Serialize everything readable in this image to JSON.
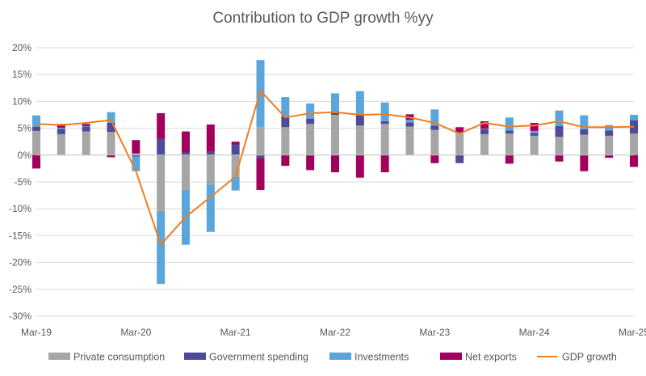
{
  "chart_data": {
    "type": "bar",
    "title": "Contribution to GDP growth %yy",
    "xlabel": "",
    "ylabel": "",
    "ylim": [
      -30,
      20
    ],
    "yticks": [
      -30,
      -25,
      -20,
      -15,
      -10,
      -5,
      0,
      5,
      10,
      15,
      20
    ],
    "ytick_labels": [
      "-30%",
      "-25%",
      "-20%",
      "-15%",
      "-10%",
      "-5%",
      "0%",
      "5%",
      "10%",
      "15%",
      "20%"
    ],
    "x_tick_labels": [
      "Mar-19",
      "Mar-20",
      "Mar-21",
      "Mar-22",
      "Mar-23",
      "Mar-24",
      "Mar-25"
    ],
    "x_tick_positions": [
      0,
      4,
      8,
      12,
      16,
      20,
      24
    ],
    "categories": [
      "Mar-19",
      "Jun-19",
      "Sep-19",
      "Dec-19",
      "Mar-20",
      "Jun-20",
      "Sep-20",
      "Dec-20",
      "Mar-21",
      "Jun-21",
      "Sep-21",
      "Dec-21",
      "Mar-22",
      "Jun-22",
      "Sep-22",
      "Dec-22",
      "Mar-23",
      "Jun-23",
      "Sep-23",
      "Dec-23",
      "Mar-24",
      "Jun-24",
      "Sep-24",
      "Dec-24",
      "Mar-25"
    ],
    "grid": true,
    "legend_position": "bottom",
    "stacked": true,
    "series": [
      {
        "name": "Private consumption",
        "type": "bar",
        "color": "#a6a6a6",
        "values": [
          4.5,
          3.9,
          4.4,
          4.3,
          0.3,
          -10.5,
          -6.5,
          -5.5,
          -4.0,
          5.2,
          5.2,
          5.8,
          7.5,
          5.5,
          5.8,
          5.3,
          4.7,
          4.0,
          3.9,
          4.0,
          3.6,
          3.4,
          3.8,
          3.6,
          4.0
        ]
      },
      {
        "name": "Government spending",
        "type": "bar",
        "color": "#4e4c9a",
        "values": [
          0.8,
          1.0,
          0.9,
          1.7,
          -0.3,
          3.0,
          0.5,
          0.6,
          2.0,
          -0.5,
          2.0,
          1.0,
          0.5,
          2.0,
          0.5,
          0.8,
          0.8,
          -1.5,
          0.9,
          0.6,
          0.5,
          2.0,
          1.0,
          1.0,
          2.5
        ]
      },
      {
        "name": "Investments",
        "type": "bar",
        "color": "#5aa5db",
        "values": [
          2.1,
          0.2,
          0.1,
          2.0,
          -2.7,
          -13.5,
          -10.2,
          -8.8,
          -2.6,
          12.5,
          3.6,
          2.8,
          3.5,
          4.4,
          3.5,
          0.5,
          3.0,
          0.2,
          0.1,
          2.4,
          0.4,
          2.9,
          2.6,
          1.0,
          1.0
        ]
      },
      {
        "name": "Net exports",
        "type": "bar",
        "color": "#a1005c",
        "values": [
          -2.5,
          0.7,
          0.4,
          -0.4,
          2.5,
          4.8,
          3.9,
          5.1,
          0.5,
          -6.0,
          -2.0,
          -2.8,
          -3.2,
          -4.2,
          -3.2,
          1.0,
          -1.5,
          1.0,
          1.4,
          -1.6,
          1.5,
          -1.2,
          -3.0,
          -0.5,
          -2.2
        ]
      },
      {
        "name": "GDP growth",
        "type": "line",
        "color": "#f07d1f",
        "values": [
          5.8,
          5.6,
          6.0,
          6.5,
          -3.0,
          -16.7,
          -11.5,
          -7.8,
          -4.0,
          12.0,
          7.0,
          7.8,
          8.0,
          7.5,
          7.6,
          7.0,
          6.0,
          4.0,
          6.0,
          5.3,
          5.5,
          6.3,
          5.2,
          5.2,
          5.3
        ]
      }
    ]
  }
}
